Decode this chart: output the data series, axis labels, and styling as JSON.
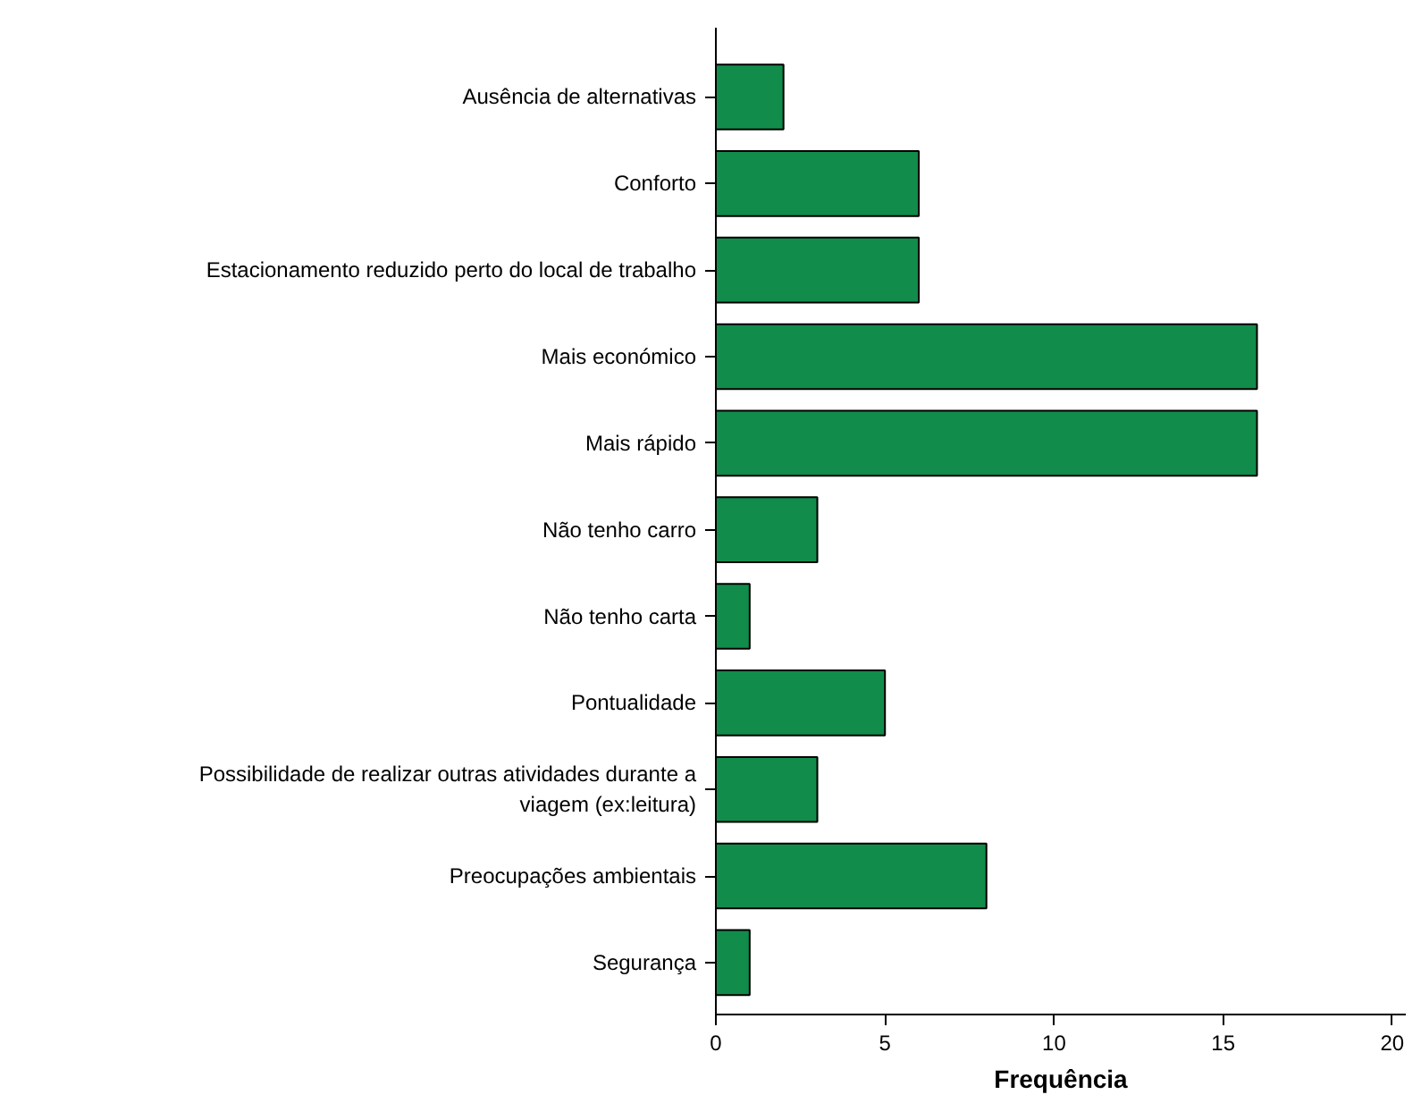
{
  "chart_data": {
    "type": "bar",
    "orientation": "horizontal",
    "categories": [
      "Ausência de alternativas",
      "Conforto",
      "Estacionamento reduzido perto do local de trabalho",
      "Mais económico",
      "Mais rápido",
      "Não tenho carro",
      "Não tenho carta",
      "Pontualidade",
      "Possibilidade de realizar outras atividades durante a viagem (ex:leitura)",
      "Preocupações ambientais",
      "Segurança"
    ],
    "values": [
      2,
      6,
      6,
      16,
      16,
      3,
      1,
      5,
      3,
      8,
      1
    ],
    "color": "#118c4b",
    "xlabel": "Frequência",
    "xlim": [
      0,
      20.4
    ],
    "xticks": [
      0,
      5,
      10,
      15,
      20
    ],
    "grid": false
  }
}
